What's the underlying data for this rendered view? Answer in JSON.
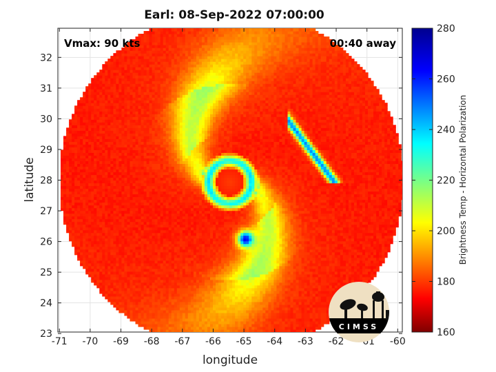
{
  "chart_data": {
    "type": "heatmap",
    "title": "Earl: 08-Sep-2022 07:00:00",
    "xlabel": "longitude",
    "ylabel": "latitude",
    "xlim": [
      -71.05,
      -59.85
    ],
    "ylim": [
      23.05,
      32.95
    ],
    "x_ticks": [
      -71,
      -70,
      -69,
      -68,
      -67,
      -66,
      -65,
      -64,
      -63,
      -62,
      -61,
      -60
    ],
    "y_ticks": [
      23,
      24,
      25,
      26,
      27,
      28,
      29,
      30,
      31,
      32
    ],
    "grid": true,
    "colorbar": {
      "label": "Brightness Temp - Horizontal Polarization",
      "min": 160,
      "max": 280,
      "ticks": [
        160,
        180,
        200,
        220,
        240,
        260,
        280
      ],
      "colormap": "jet"
    },
    "storm_center": [
      -65.5,
      27.9
    ],
    "swath_center": [
      -65.45,
      27.95
    ],
    "swath_radius_deg": 5.6,
    "annotations": {
      "vmax": "Vmax: 90 kts",
      "time_offset": "00:40 away"
    },
    "logo_text": "CIMSS"
  }
}
